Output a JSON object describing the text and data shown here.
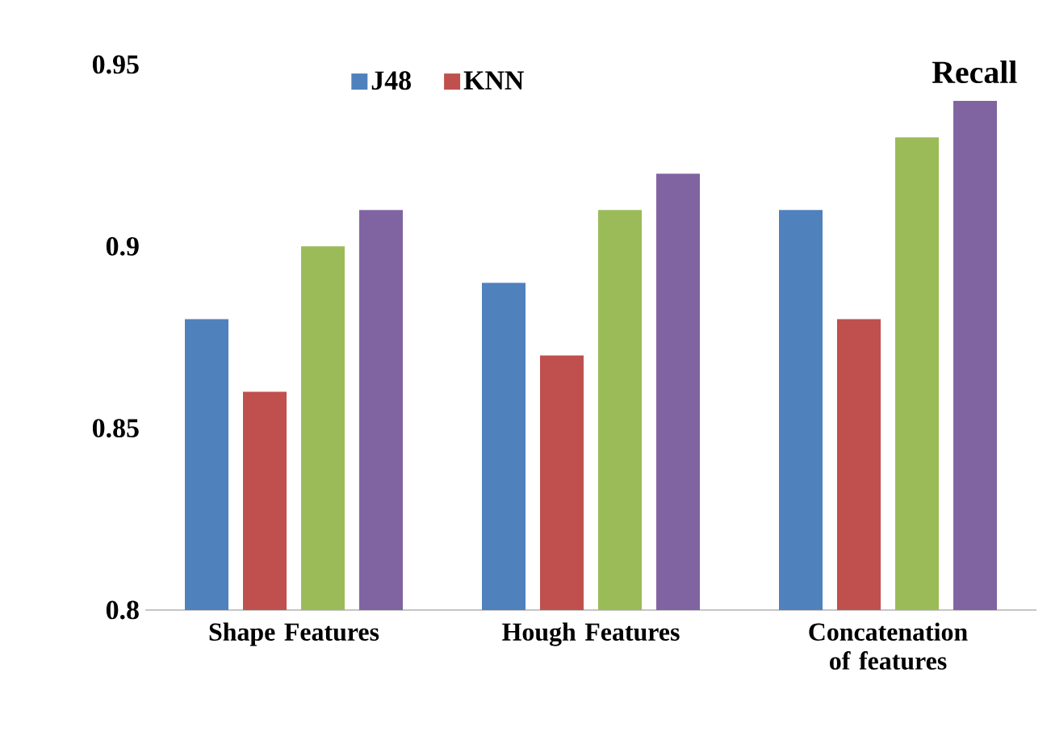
{
  "chart_data": {
    "type": "bar",
    "title": "Recall",
    "categories": [
      "Shape Features",
      "Hough Features",
      "Concatenation of features"
    ],
    "series": [
      {
        "name": "J48",
        "color": "#4f81bd",
        "values": [
          0.88,
          0.89,
          0.91
        ]
      },
      {
        "name": "KNN",
        "color": "#c0504d",
        "values": [
          0.86,
          0.87,
          0.88
        ]
      },
      {
        "color": "#9bbb59",
        "values": [
          0.9,
          0.91,
          0.93
        ]
      },
      {
        "color": "#8064a2",
        "values": [
          0.91,
          0.92,
          0.94
        ]
      }
    ],
    "ylim": [
      0.8,
      0.95
    ],
    "yticks": [
      0.8,
      0.85,
      0.9,
      0.95
    ],
    "grid": false,
    "legend": "top"
  }
}
